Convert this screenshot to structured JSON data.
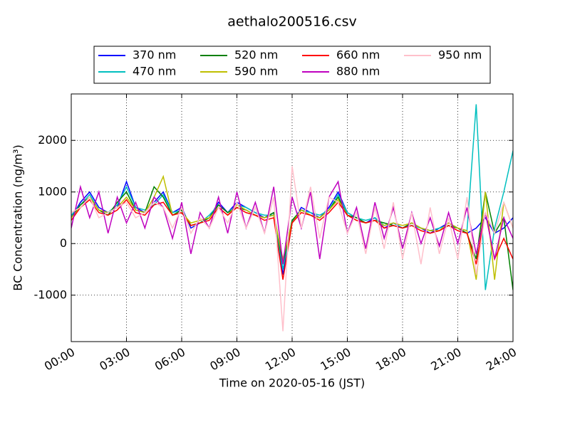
{
  "chart_data": {
    "type": "line",
    "title": "aethalo200516.csv",
    "x_label": "Time on 2020-05-16 (JST)",
    "y_label": "BC Concentration (ng/m³)",
    "xlim": [
      0,
      24
    ],
    "ylim": [
      -1900,
      2900
    ],
    "xticks": [
      {
        "value": 0,
        "label": "00:00"
      },
      {
        "value": 3,
        "label": "03:00"
      },
      {
        "value": 6,
        "label": "06:00"
      },
      {
        "value": 9,
        "label": "09:00"
      },
      {
        "value": 12,
        "label": "12:00"
      },
      {
        "value": 15,
        "label": "15:00"
      },
      {
        "value": 18,
        "label": "18:00"
      },
      {
        "value": 21,
        "label": "21:00"
      },
      {
        "value": 24,
        "label": "24:00"
      }
    ],
    "yticks": [
      -1000,
      0,
      1000,
      2000
    ],
    "grid": true,
    "legend": "top",
    "x": [
      0,
      0.5,
      1,
      1.5,
      2,
      2.5,
      3,
      3.5,
      4,
      4.5,
      5,
      5.5,
      6,
      6.5,
      7,
      7.5,
      8,
      8.5,
      9,
      9.5,
      10,
      10.5,
      11,
      11.5,
      12,
      12.5,
      13,
      13.5,
      14,
      14.5,
      15,
      15.5,
      16,
      16.5,
      17,
      17.5,
      18,
      18.5,
      19,
      19.5,
      20,
      20.5,
      21,
      21.5,
      22,
      22.5,
      23,
      23.5,
      24
    ],
    "series": [
      {
        "name": "370 nm",
        "color": "#0000ff",
        "values": [
          500,
          800,
          1000,
          700,
          600,
          700,
          1200,
          700,
          600,
          800,
          1000,
          600,
          700,
          300,
          400,
          500,
          800,
          600,
          800,
          700,
          600,
          500,
          600,
          -600,
          400,
          700,
          600,
          500,
          700,
          1000,
          600,
          500,
          400,
          500,
          300,
          400,
          300,
          400,
          300,
          200,
          300,
          400,
          300,
          200,
          300,
          500,
          200,
          300,
          500
        ]
      },
      {
        "name": "470 nm",
        "color": "#00bfbf",
        "values": [
          550,
          750,
          950,
          650,
          600,
          750,
          1100,
          700,
          650,
          750,
          950,
          600,
          650,
          350,
          400,
          550,
          750,
          600,
          750,
          700,
          600,
          550,
          550,
          -500,
          450,
          650,
          600,
          550,
          650,
          950,
          600,
          500,
          450,
          500,
          350,
          400,
          300,
          350,
          300,
          250,
          300,
          350,
          300,
          250,
          2700,
          -900,
          300,
          1000,
          1800
        ]
      },
      {
        "name": "520 nm",
        "color": "#008000",
        "values": [
          500,
          750,
          900,
          650,
          550,
          800,
          1000,
          650,
          600,
          1100,
          900,
          550,
          650,
          350,
          400,
          500,
          750,
          600,
          700,
          650,
          550,
          500,
          600,
          -400,
          450,
          650,
          550,
          500,
          650,
          900,
          550,
          500,
          400,
          450,
          400,
          350,
          300,
          400,
          300,
          250,
          250,
          350,
          300,
          200,
          -300,
          1000,
          200,
          500,
          -900
        ]
      },
      {
        "name": "590 nm",
        "color": "#bfbf00",
        "values": [
          500,
          700,
          900,
          650,
          600,
          700,
          900,
          650,
          600,
          900,
          1300,
          550,
          600,
          400,
          450,
          500,
          700,
          550,
          750,
          650,
          550,
          500,
          550,
          -300,
          400,
          650,
          550,
          500,
          650,
          850,
          550,
          450,
          400,
          450,
          350,
          400,
          350,
          400,
          300,
          250,
          250,
          400,
          300,
          250,
          -700,
          1000,
          -700,
          800,
          300
        ]
      },
      {
        "name": "660 nm",
        "color": "#ff0000",
        "values": [
          450,
          700,
          850,
          600,
          550,
          650,
          850,
          600,
          550,
          750,
          800,
          550,
          600,
          350,
          400,
          450,
          700,
          550,
          700,
          600,
          550,
          450,
          500,
          -700,
          400,
          600,
          550,
          450,
          600,
          800,
          550,
          450,
          400,
          450,
          300,
          350,
          300,
          350,
          250,
          200,
          250,
          350,
          250,
          200,
          -400,
          600,
          -300,
          100,
          -300
        ]
      },
      {
        "name": "880 nm",
        "color": "#bf00bf",
        "values": [
          300,
          1100,
          500,
          1000,
          200,
          900,
          400,
          800,
          300,
          900,
          700,
          100,
          800,
          -200,
          600,
          300,
          900,
          200,
          1000,
          300,
          800,
          200,
          1100,
          -400,
          900,
          300,
          1000,
          -300,
          900,
          1200,
          200,
          700,
          -100,
          800,
          100,
          700,
          -100,
          600,
          0,
          500,
          -50,
          600,
          0,
          700,
          -200,
          600,
          -300,
          500,
          100
        ]
      },
      {
        "name": "950 nm",
        "color": "#ffc0cb",
        "values": [
          600,
          700,
          900,
          500,
          600,
          700,
          800,
          500,
          600,
          800,
          700,
          300,
          700,
          200,
          500,
          300,
          700,
          400,
          800,
          300,
          700,
          200,
          900,
          -1700,
          1500,
          300,
          1100,
          100,
          900,
          800,
          200,
          600,
          -200,
          700,
          -100,
          800,
          -300,
          600,
          -400,
          700,
          -200,
          500,
          -300,
          900,
          -600,
          600,
          200,
          800,
          300
        ]
      }
    ]
  }
}
